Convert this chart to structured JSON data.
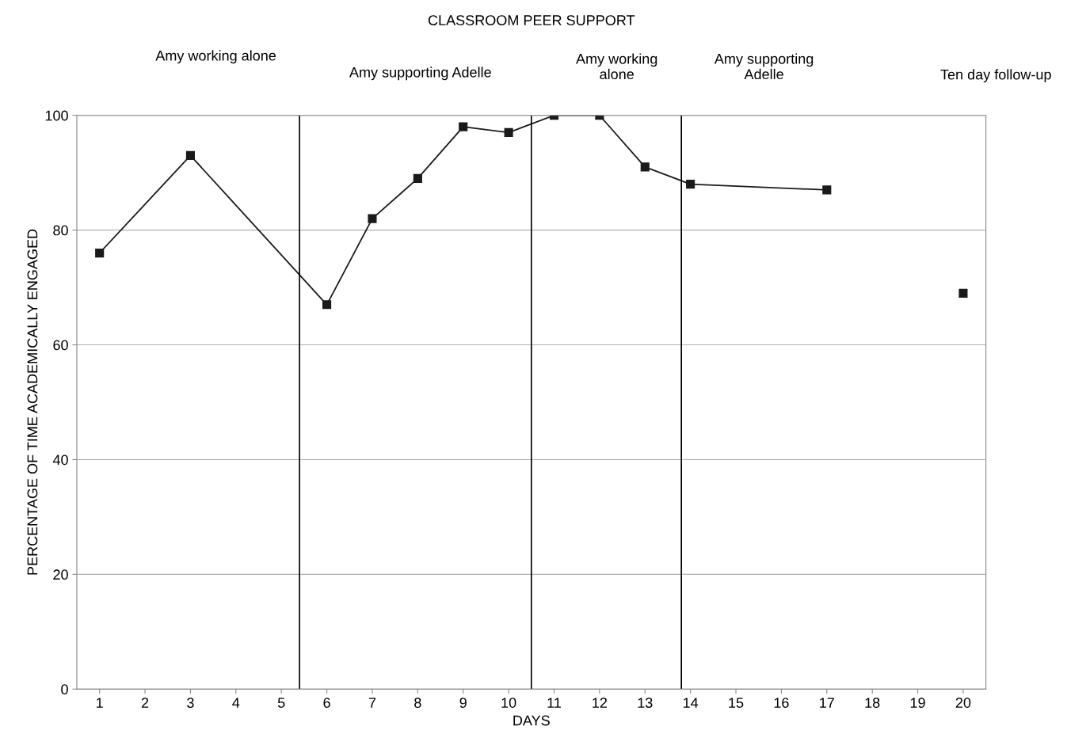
{
  "chart_data": {
    "type": "line",
    "title": "CLASSROOM PEER SUPPORT",
    "xlabel": "DAYS",
    "ylabel": "PERCENTAGE OF TIME ACADEMICALLY ENGAGED",
    "series": [
      {
        "color": "#1a1a1a",
        "x": [
          1,
          3,
          6,
          7,
          8,
          9,
          10,
          11,
          12,
          13,
          14,
          17
        ],
        "values": [
          76,
          93,
          67,
          82,
          89,
          98,
          97,
          100,
          100,
          91,
          88,
          87
        ]
      },
      {
        "color": "#1a1a1a",
        "x": [
          20
        ],
        "values": [
          69
        ]
      }
    ],
    "xlim": [
      0.5,
      20.5
    ],
    "xticks": [
      1,
      2,
      3,
      4,
      5,
      6,
      7,
      8,
      9,
      10,
      11,
      12,
      13,
      14,
      15,
      16,
      17,
      18,
      19,
      20
    ],
    "ylim": [
      0,
      100
    ],
    "yticks": [
      0,
      20,
      40,
      60,
      80,
      100
    ],
    "ref_lines": [
      {
        "axis": "x",
        "value": 5.4,
        "color": "#000000"
      },
      {
        "axis": "x",
        "value": 10.5,
        "color": "#000000"
      },
      {
        "axis": "x",
        "value": 13.8,
        "color": "#000000"
      }
    ],
    "annotations": [
      "Amy working alone",
      "Amy supporting Adelle",
      "Amy working\nalone",
      "Amy supporting\nAdelle",
      "Ten day follow-up"
    ],
    "grid": "y",
    "marker": "square",
    "line_style": "solid",
    "legend": false
  }
}
